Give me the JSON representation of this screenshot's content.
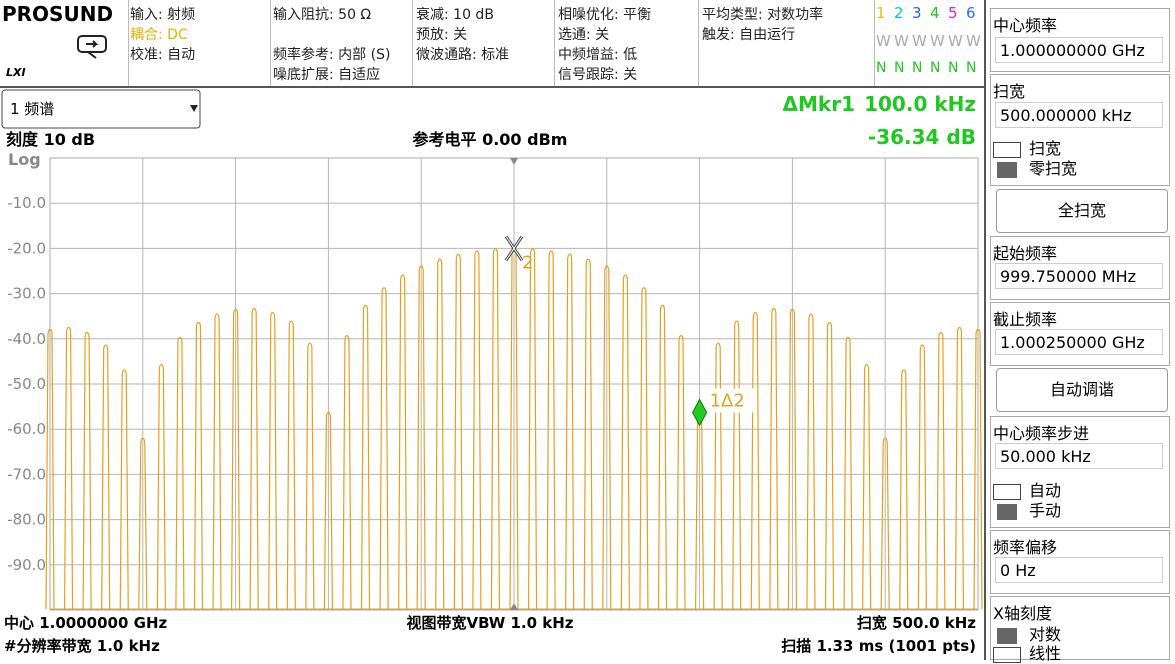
{
  "logo": "PROSUND",
  "lxi": "LXI",
  "status": [
    [
      "输入: 射频",
      "耦合: DC",
      "校准: 自动"
    ],
    [
      "输入阻抗: 50 Ω",
      null,
      "频率参考: 内部 (S)",
      "噪底扩展: 自适应"
    ],
    [
      "衰减: 10 dB",
      "预放: 关",
      "微波通路: 标准"
    ],
    [
      "相噪优化: 平衡",
      "选通: 关",
      "中频增益: 低",
      "信号跟踪: 关"
    ],
    [
      "平均类型: 对数功率",
      "触发: 自由运行"
    ]
  ],
  "traces": {
    "numbers": [
      "1",
      "2",
      "3",
      "4",
      "5",
      "6"
    ],
    "colors": [
      "#e6c200",
      "#00c8d8",
      "#2060ff",
      "#20c020",
      "#e020e0",
      "#2070ff"
    ],
    "types": [
      "W",
      "W",
      "W",
      "W",
      "W",
      "W"
    ],
    "detectors": [
      "N",
      "N",
      "N",
      "N",
      "N",
      "N"
    ]
  },
  "view": "1 频谱",
  "delta_marker": {
    "label": "ΔMkr1",
    "x": "100.0 kHz",
    "y": "-36.34 dB"
  },
  "scale": "刻度 10 dB",
  "ref_level": "参考电平 0.00 dBm",
  "chart": {
    "type": "spectrum",
    "y_scale": "Log",
    "color": "#e6a020",
    "ylim": [
      -100,
      0
    ],
    "yticks": [
      {
        "value": -10,
        "label": "-10.0"
      },
      {
        "value": -20,
        "label": "-20.0"
      },
      {
        "value": -30,
        "label": "-30.0"
      },
      {
        "value": -40,
        "label": "-40.0"
      },
      {
        "value": -50,
        "label": "-50.0"
      },
      {
        "value": -60,
        "label": "-60.0"
      },
      {
        "value": -70,
        "label": "-70.0"
      },
      {
        "value": -80,
        "label": "-80.0"
      },
      {
        "value": -90,
        "label": "-90.0"
      }
    ],
    "values": [
      -37.9,
      -37.5,
      -38.6,
      -41.4,
      -46.9,
      -62,
      -45.7,
      -39.7,
      -36.4,
      -34.5,
      -33.5,
      -33.3,
      -34.2,
      -36.1,
      -41.0,
      -56.3,
      -39.3,
      -32.6,
      -28.7,
      -25.9,
      -23.9,
      -22.4,
      -21.3,
      -20.6,
      -20.1,
      -20.0,
      -20.1,
      -20.6,
      -21.3,
      -22.4,
      -23.9,
      -25.9,
      -28.7,
      -32.6,
      -39.3,
      -56.3,
      -41.0,
      -36.1,
      -34.2,
      -33.3,
      -33.5,
      -34.5,
      -36.4,
      -39.7,
      -45.7,
      -62,
      -46.9,
      -41.4,
      -38.6,
      -37.5,
      -37.9
    ],
    "markers": [
      "2",
      "1Δ2"
    ]
  },
  "footer": {
    "center": "中心 1.0000000 GHz",
    "rbw": "#分辨率带宽 1.0 kHz",
    "vbw": "视图带宽VBW 1.0 kHz",
    "span": "扫宽 500.0 kHz",
    "sweep": "扫描 1.33 ms (1001 pts)"
  },
  "softkeys": {
    "center_freq": {
      "label": "中心频率",
      "value": "1.000000000 GHz"
    },
    "span": {
      "label": "扫宽",
      "value": "500.000000 kHz",
      "options": [
        "扫宽",
        "零扫宽"
      ]
    },
    "full_span": "全扫宽",
    "start_freq": {
      "label": "起始频率",
      "value": "999.750000 MHz"
    },
    "stop_freq": {
      "label": "截止频率",
      "value": "1.000250000 GHz"
    },
    "auto_tune": "自动调谐",
    "cf_step": {
      "label": "中心频率步进",
      "value": "50.000 kHz",
      "options": [
        "自动",
        "手动"
      ]
    },
    "freq_offset": {
      "label": "频率偏移",
      "value": "0 Hz"
    },
    "x_scale": {
      "label": "X轴刻度",
      "options": [
        "对数",
        "线性"
      ]
    }
  }
}
